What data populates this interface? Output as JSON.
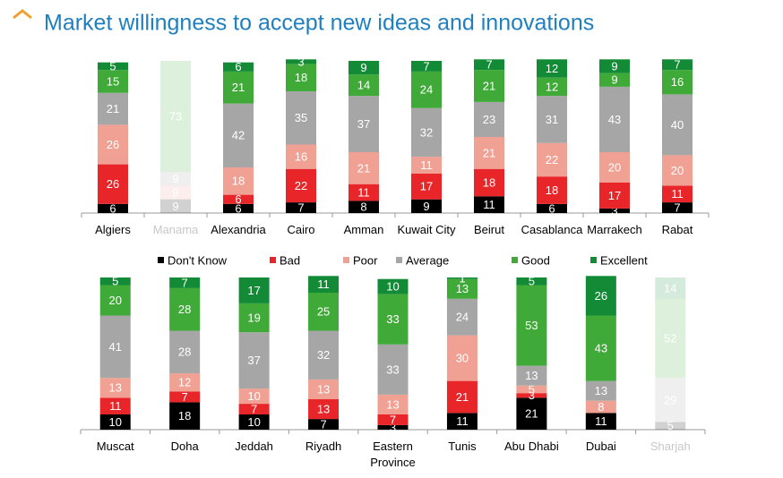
{
  "title": "Market willingness to accept new ideas and innovations",
  "chart_data": [
    {
      "type": "stacked_bar",
      "categories": [
        "Algiers",
        "Manama",
        "Alexandria",
        "Cairo",
        "Amman",
        "Kuwait City",
        "Beirut",
        "Casablanca",
        "Marrakech",
        "Rabat"
      ],
      "dimmed": [
        false,
        true,
        false,
        false,
        false,
        false,
        false,
        false,
        false,
        false
      ],
      "series": [
        {
          "name": "Don't Know",
          "color": "#000000",
          "values": [
            6,
            9,
            6,
            7,
            8,
            9,
            11,
            6,
            3,
            7
          ]
        },
        {
          "name": "Bad",
          "color": "#e8262a",
          "values": [
            26,
            0,
            6,
            22,
            11,
            17,
            18,
            18,
            17,
            11
          ]
        },
        {
          "name": "Poor",
          "color": "#f0a193",
          "values": [
            26,
            9,
            18,
            16,
            21,
            11,
            21,
            22,
            20,
            20
          ]
        },
        {
          "name": "Average",
          "color": "#a6a6a6",
          "values": [
            21,
            9,
            42,
            35,
            37,
            32,
            23,
            31,
            43,
            40
          ]
        },
        {
          "name": "Good",
          "color": "#3faa38",
          "values": [
            15,
            73,
            21,
            18,
            14,
            24,
            21,
            12,
            9,
            16
          ]
        },
        {
          "name": "Excellent",
          "color": "#138a36",
          "values": [
            5,
            0,
            6,
            3,
            9,
            7,
            7,
            12,
            9,
            7
          ]
        }
      ]
    },
    {
      "type": "stacked_bar",
      "categories": [
        "Muscat",
        "Doha",
        "Jeddah",
        "Riyadh",
        "Eastern Province",
        "Tunis",
        "Abu Dhabi",
        "Dubai",
        "Sharjah"
      ],
      "dimmed": [
        false,
        false,
        false,
        false,
        false,
        false,
        false,
        false,
        true
      ],
      "series": [
        {
          "values": [
            10,
            18,
            10,
            7,
            3,
            11,
            21,
            11,
            5
          ]
        },
        {
          "values": [
            11,
            7,
            7,
            13,
            7,
            21,
            3,
            0,
            0
          ]
        },
        {
          "values": [
            13,
            12,
            10,
            13,
            13,
            30,
            5,
            8,
            0
          ]
        },
        {
          "values": [
            41,
            28,
            37,
            32,
            33,
            24,
            13,
            13,
            29
          ]
        },
        {
          "values": [
            20,
            28,
            19,
            25,
            33,
            13,
            53,
            43,
            52
          ]
        },
        {
          "values": [
            5,
            7,
            17,
            11,
            10,
            1,
            5,
            26,
            14
          ]
        }
      ]
    }
  ]
}
